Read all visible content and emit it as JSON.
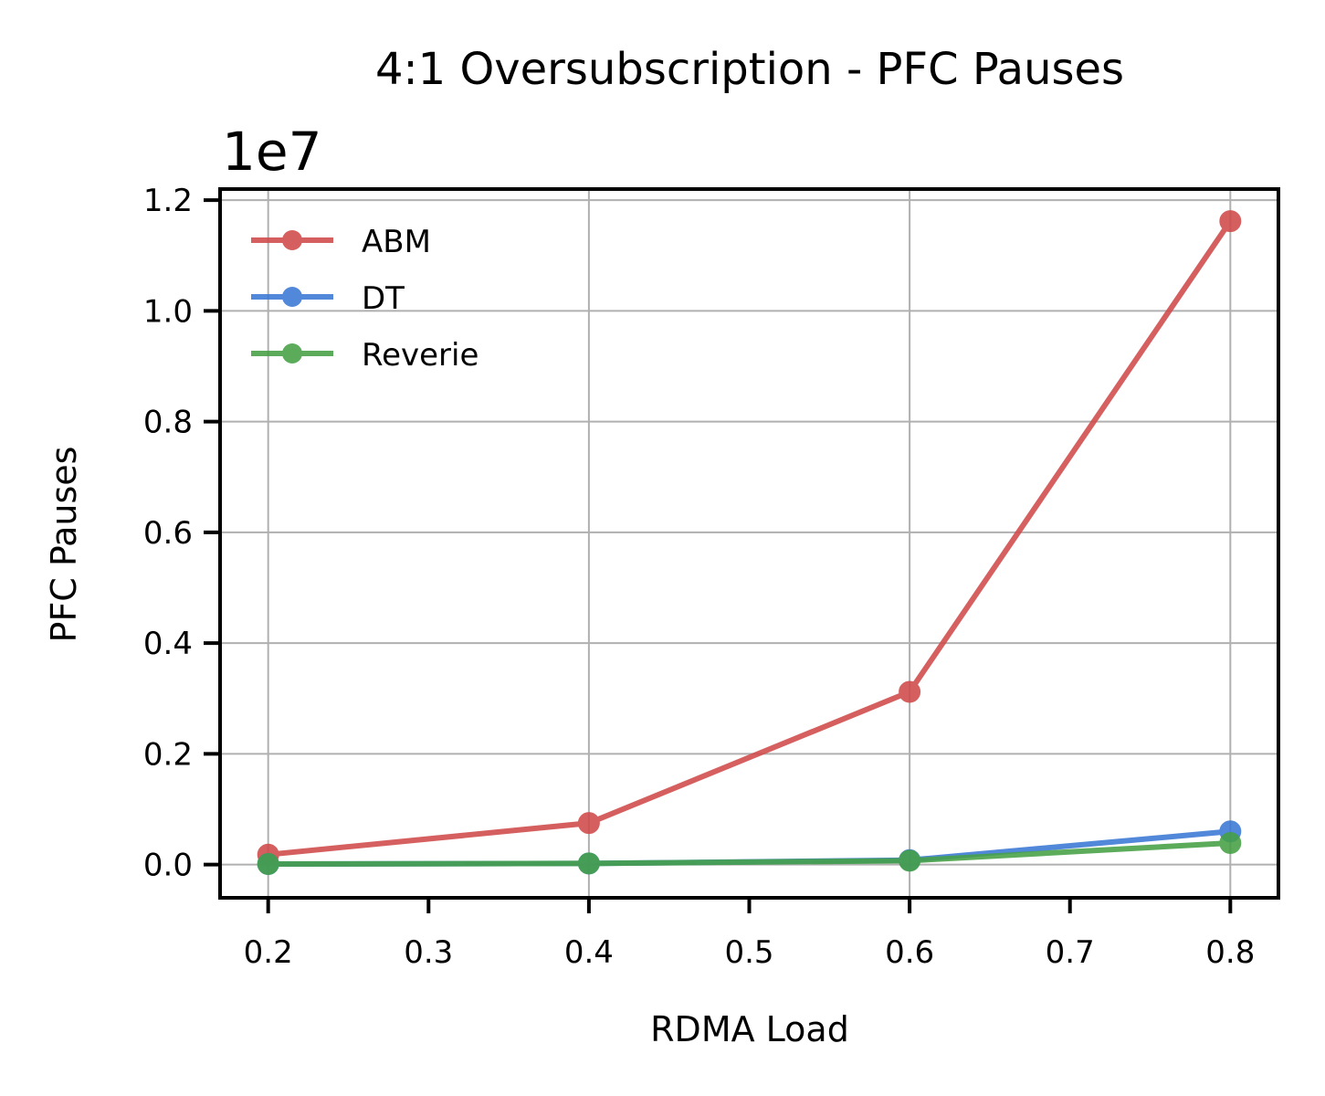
{
  "chart_data": {
    "type": "line",
    "title": "4:1 Oversubscription - PFC Pauses",
    "xlabel": "RDMA Load",
    "ylabel": "PFC Pauses",
    "y_offset_label": "1e7",
    "y_scale_factor": 10000000,
    "xlim": [
      0.17,
      0.83
    ],
    "ylim": [
      -0.06,
      1.22
    ],
    "x_ticks": [
      0.2,
      0.3,
      0.4,
      0.5,
      0.6,
      0.7,
      0.8
    ],
    "x_tick_labels": [
      "0.2",
      "0.3",
      "0.4",
      "0.5",
      "0.6",
      "0.7",
      "0.8"
    ],
    "y_ticks": [
      0.0,
      0.2,
      0.4,
      0.6,
      0.8,
      1.0,
      1.2
    ],
    "y_tick_labels": [
      "0.0",
      "0.2",
      "0.4",
      "0.6",
      "0.8",
      "1.0",
      "1.2"
    ],
    "grid": true,
    "legend_position": "upper-left",
    "x": [
      0.2,
      0.4,
      0.6,
      0.8
    ],
    "series": [
      {
        "name": "ABM",
        "color": "#d04a4a",
        "values": [
          0.018,
          0.075,
          0.312,
          1.162
        ]
      },
      {
        "name": "DT",
        "color": "#3a78d4",
        "values": [
          0.001,
          0.002,
          0.008,
          0.06
        ]
      },
      {
        "name": "Reverie",
        "color": "#45a045",
        "values": [
          0.001,
          0.002,
          0.007,
          0.039
        ]
      }
    ]
  }
}
